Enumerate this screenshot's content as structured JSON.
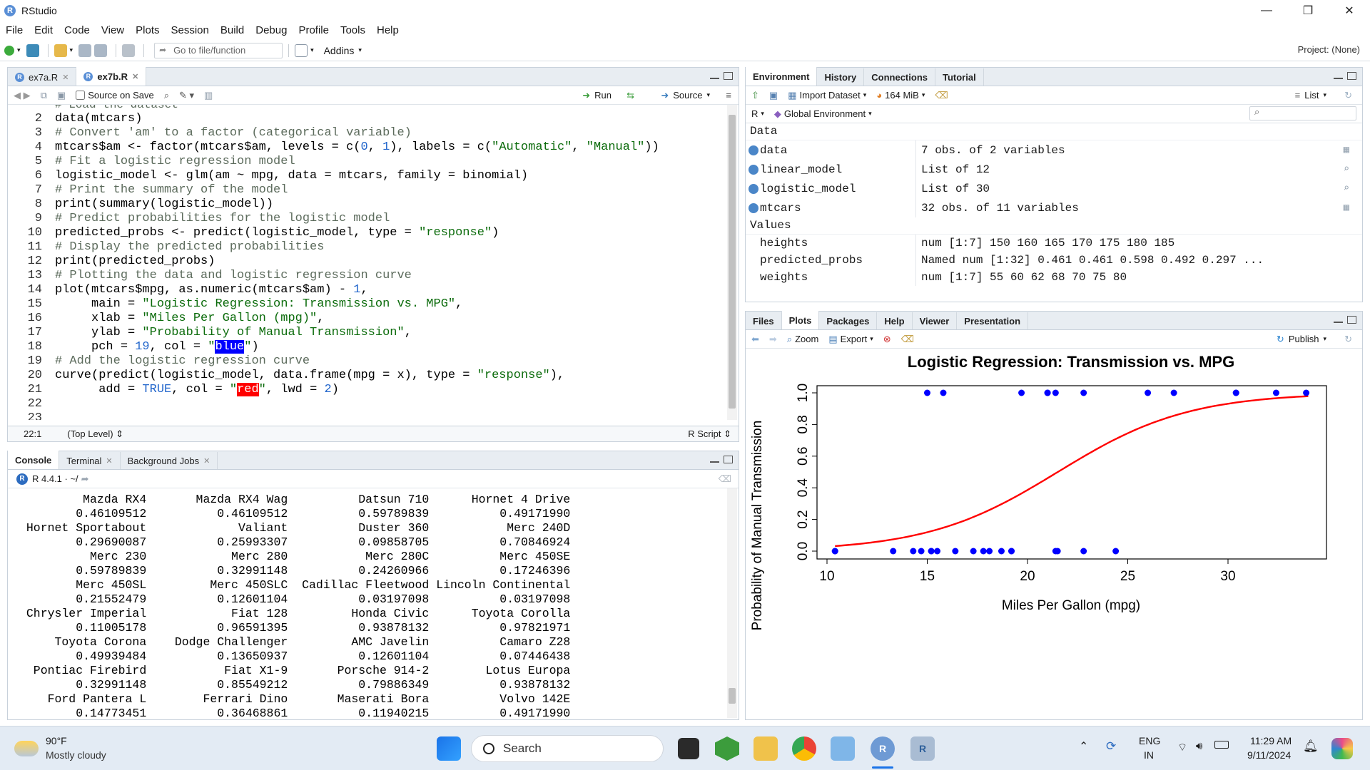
{
  "window": {
    "title": "RStudio",
    "app_icon": "R",
    "minimize": "—",
    "maximize": "❐",
    "close": "✕"
  },
  "menu": [
    "File",
    "Edit",
    "Code",
    "View",
    "Plots",
    "Session",
    "Build",
    "Debug",
    "Profile",
    "Tools",
    "Help"
  ],
  "toolbar": {
    "goto_placeholder": "Go to file/function",
    "addins": "Addins",
    "project": "Project: (None)"
  },
  "editor": {
    "tabs": [
      {
        "label": "ex7a.R"
      },
      {
        "label": "ex7b.R"
      }
    ],
    "source_on_save": "Source on Save",
    "run": "Run",
    "source": "Source",
    "top_partial": "# Load the dataset",
    "lines": [
      {
        "n": "2",
        "text": "data(mtcars)"
      },
      {
        "n": "3",
        "text": "# Convert 'am' to a factor (categorical variable)"
      },
      {
        "n": "4",
        "text": "mtcars$am <- factor(mtcars$am, levels = c(0, 1), labels = c(\"Automatic\", \"Manual\"))"
      },
      {
        "n": "5",
        "text": "# Fit a logistic regression model"
      },
      {
        "n": "6",
        "text": "logistic_model <- glm(am ~ mpg, data = mtcars, family = binomial)"
      },
      {
        "n": "7",
        "text": "# Print the summary of the model"
      },
      {
        "n": "8",
        "text": "print(summary(logistic_model))"
      },
      {
        "n": "9",
        "text": "# Predict probabilities for the logistic model"
      },
      {
        "n": "10",
        "text": "predicted_probs <- predict(logistic_model, type = \"response\")"
      },
      {
        "n": "11",
        "text": "# Display the predicted probabilities"
      },
      {
        "n": "12",
        "text": "print(predicted_probs)"
      },
      {
        "n": "13",
        "text": "# Plotting the data and logistic regression curve"
      },
      {
        "n": "14",
        "text": "plot(mtcars$mpg, as.numeric(mtcars$am) - 1,"
      },
      {
        "n": "15",
        "text": "     main = \"Logistic Regression: Transmission vs. MPG\","
      },
      {
        "n": "16",
        "text": "     xlab = \"Miles Per Gallon (mpg)\","
      },
      {
        "n": "17",
        "text": "     ylab = \"Probability of Manual Transmission\","
      },
      {
        "n": "18",
        "text": "     pch = 19, col = \"blue\")"
      },
      {
        "n": "19",
        "text": "# Add the logistic regression curve"
      },
      {
        "n": "20",
        "text": "curve(predict(logistic_model, data.frame(mpg = x), type = \"response\"),"
      },
      {
        "n": "21",
        "text": "      add = TRUE, col = \"red\", lwd = 2)"
      },
      {
        "n": "22",
        "text": ""
      },
      {
        "n": "23",
        "text": ""
      }
    ],
    "status_pos": "22:1",
    "status_scope": "(Top Level)",
    "status_type": "R Script"
  },
  "console": {
    "tabs": [
      {
        "label": "Console"
      },
      {
        "label": "Terminal"
      },
      {
        "label": "Background Jobs"
      }
    ],
    "r_version": "R 4.4.1 · ~/",
    "output": [
      "         Mazda RX4       Mazda RX4 Wag          Datsun 710      Hornet 4 Drive",
      "        0.46109512          0.46109512          0.59789839          0.49171990",
      " Hornet Sportabout             Valiant          Duster 360           Merc 240D",
      "        0.29690087          0.25993307          0.09858705          0.70846924",
      "          Merc 230            Merc 280           Merc 280C          Merc 450SE",
      "        0.59789839          0.32991148          0.24260966          0.17246396",
      "        Merc 450SL         Merc 450SLC  Cadillac Fleetwood Lincoln Continental",
      "        0.21552479          0.12601104          0.03197098          0.03197098",
      " Chrysler Imperial            Fiat 128         Honda Civic      Toyota Corolla",
      "        0.11005178          0.96591395          0.93878132          0.97821971",
      "     Toyota Corona    Dodge Challenger         AMC Javelin          Camaro Z28",
      "        0.49939484          0.13650937          0.12601104          0.07446438",
      "  Pontiac Firebird           Fiat X1-9       Porsche 914-2        Lotus Europa",
      "        0.32991148          0.85549212          0.79886349          0.93878132",
      "    Ford Pantera L        Ferrari Dino       Maserati Bora          Volvo 142E",
      "        0.14773451          0.36468861          0.11940215          0.49171990"
    ]
  },
  "environment": {
    "tabs": [
      {
        "label": "Environment"
      },
      {
        "label": "History"
      },
      {
        "label": "Connections"
      },
      {
        "label": "Tutorial"
      }
    ],
    "import_dataset": "Import Dataset",
    "memory": "164 MiB",
    "list_label": "List",
    "r_label": "R",
    "global_env": "Global Environment",
    "data_header": "Data",
    "values_header": "Values",
    "data": [
      {
        "name": "data",
        "value": "7 obs. of 2 variables"
      },
      {
        "name": "linear_model",
        "value": "List of  12"
      },
      {
        "name": "logistic_model",
        "value": "List of  30"
      },
      {
        "name": "mtcars",
        "value": "32 obs. of 11 variables"
      }
    ],
    "values": [
      {
        "name": "heights",
        "value": "num [1:7] 150 160 165 170 175 180 185"
      },
      {
        "name": "predicted_probs",
        "value": "Named num [1:32] 0.461 0.461 0.598 0.492 0.297 ..."
      },
      {
        "name": "weights",
        "value": "num [1:7] 55 60 62 68 70 75 80"
      }
    ]
  },
  "files_pane": {
    "tabs": [
      {
        "label": "Files"
      },
      {
        "label": "Plots"
      },
      {
        "label": "Packages"
      },
      {
        "label": "Help"
      },
      {
        "label": "Viewer"
      },
      {
        "label": "Presentation"
      }
    ],
    "zoom": "Zoom",
    "export": "Export",
    "publish": "Publish"
  },
  "chart_data": {
    "type": "scatter",
    "title": "Logistic Regression: Transmission vs. MPG",
    "xlabel": "Miles Per Gallon (mpg)",
    "ylabel": "Probability of Manual Transmission",
    "xlim": [
      10,
      34
    ],
    "ylim": [
      0,
      1
    ],
    "xticks": [
      10,
      15,
      20,
      25,
      30
    ],
    "yticks": [
      "0.0",
      "0.2",
      "0.4",
      "0.6",
      "0.8",
      "1.0"
    ],
    "point_color": "#0000ff",
    "curve_color": "#ff0000",
    "points": [
      {
        "x": 21.0,
        "y": 1
      },
      {
        "x": 21.0,
        "y": 1
      },
      {
        "x": 22.8,
        "y": 1
      },
      {
        "x": 21.4,
        "y": 0
      },
      {
        "x": 18.7,
        "y": 0
      },
      {
        "x": 18.1,
        "y": 0
      },
      {
        "x": 14.3,
        "y": 0
      },
      {
        "x": 24.4,
        "y": 0
      },
      {
        "x": 22.8,
        "y": 0
      },
      {
        "x": 19.2,
        "y": 0
      },
      {
        "x": 17.8,
        "y": 0
      },
      {
        "x": 16.4,
        "y": 0
      },
      {
        "x": 17.3,
        "y": 0
      },
      {
        "x": 15.2,
        "y": 0
      },
      {
        "x": 10.4,
        "y": 0
      },
      {
        "x": 10.4,
        "y": 0
      },
      {
        "x": 14.7,
        "y": 0
      },
      {
        "x": 32.4,
        "y": 1
      },
      {
        "x": 30.4,
        "y": 1
      },
      {
        "x": 33.9,
        "y": 1
      },
      {
        "x": 21.5,
        "y": 0
      },
      {
        "x": 15.5,
        "y": 0
      },
      {
        "x": 15.2,
        "y": 0
      },
      {
        "x": 13.3,
        "y": 0
      },
      {
        "x": 19.2,
        "y": 0
      },
      {
        "x": 27.3,
        "y": 1
      },
      {
        "x": 26.0,
        "y": 1
      },
      {
        "x": 30.4,
        "y": 1
      },
      {
        "x": 15.8,
        "y": 1
      },
      {
        "x": 19.7,
        "y": 1
      },
      {
        "x": 15.0,
        "y": 1
      },
      {
        "x": 21.4,
        "y": 1
      }
    ],
    "curve": {
      "intercept": -6.604,
      "slope": 0.307
    }
  },
  "taskbar": {
    "temp": "90°F",
    "weather": "Mostly cloudy",
    "search": "Search",
    "lang1": "ENG",
    "lang2": "IN",
    "time": "11:29 AM",
    "date": "9/11/2024"
  }
}
